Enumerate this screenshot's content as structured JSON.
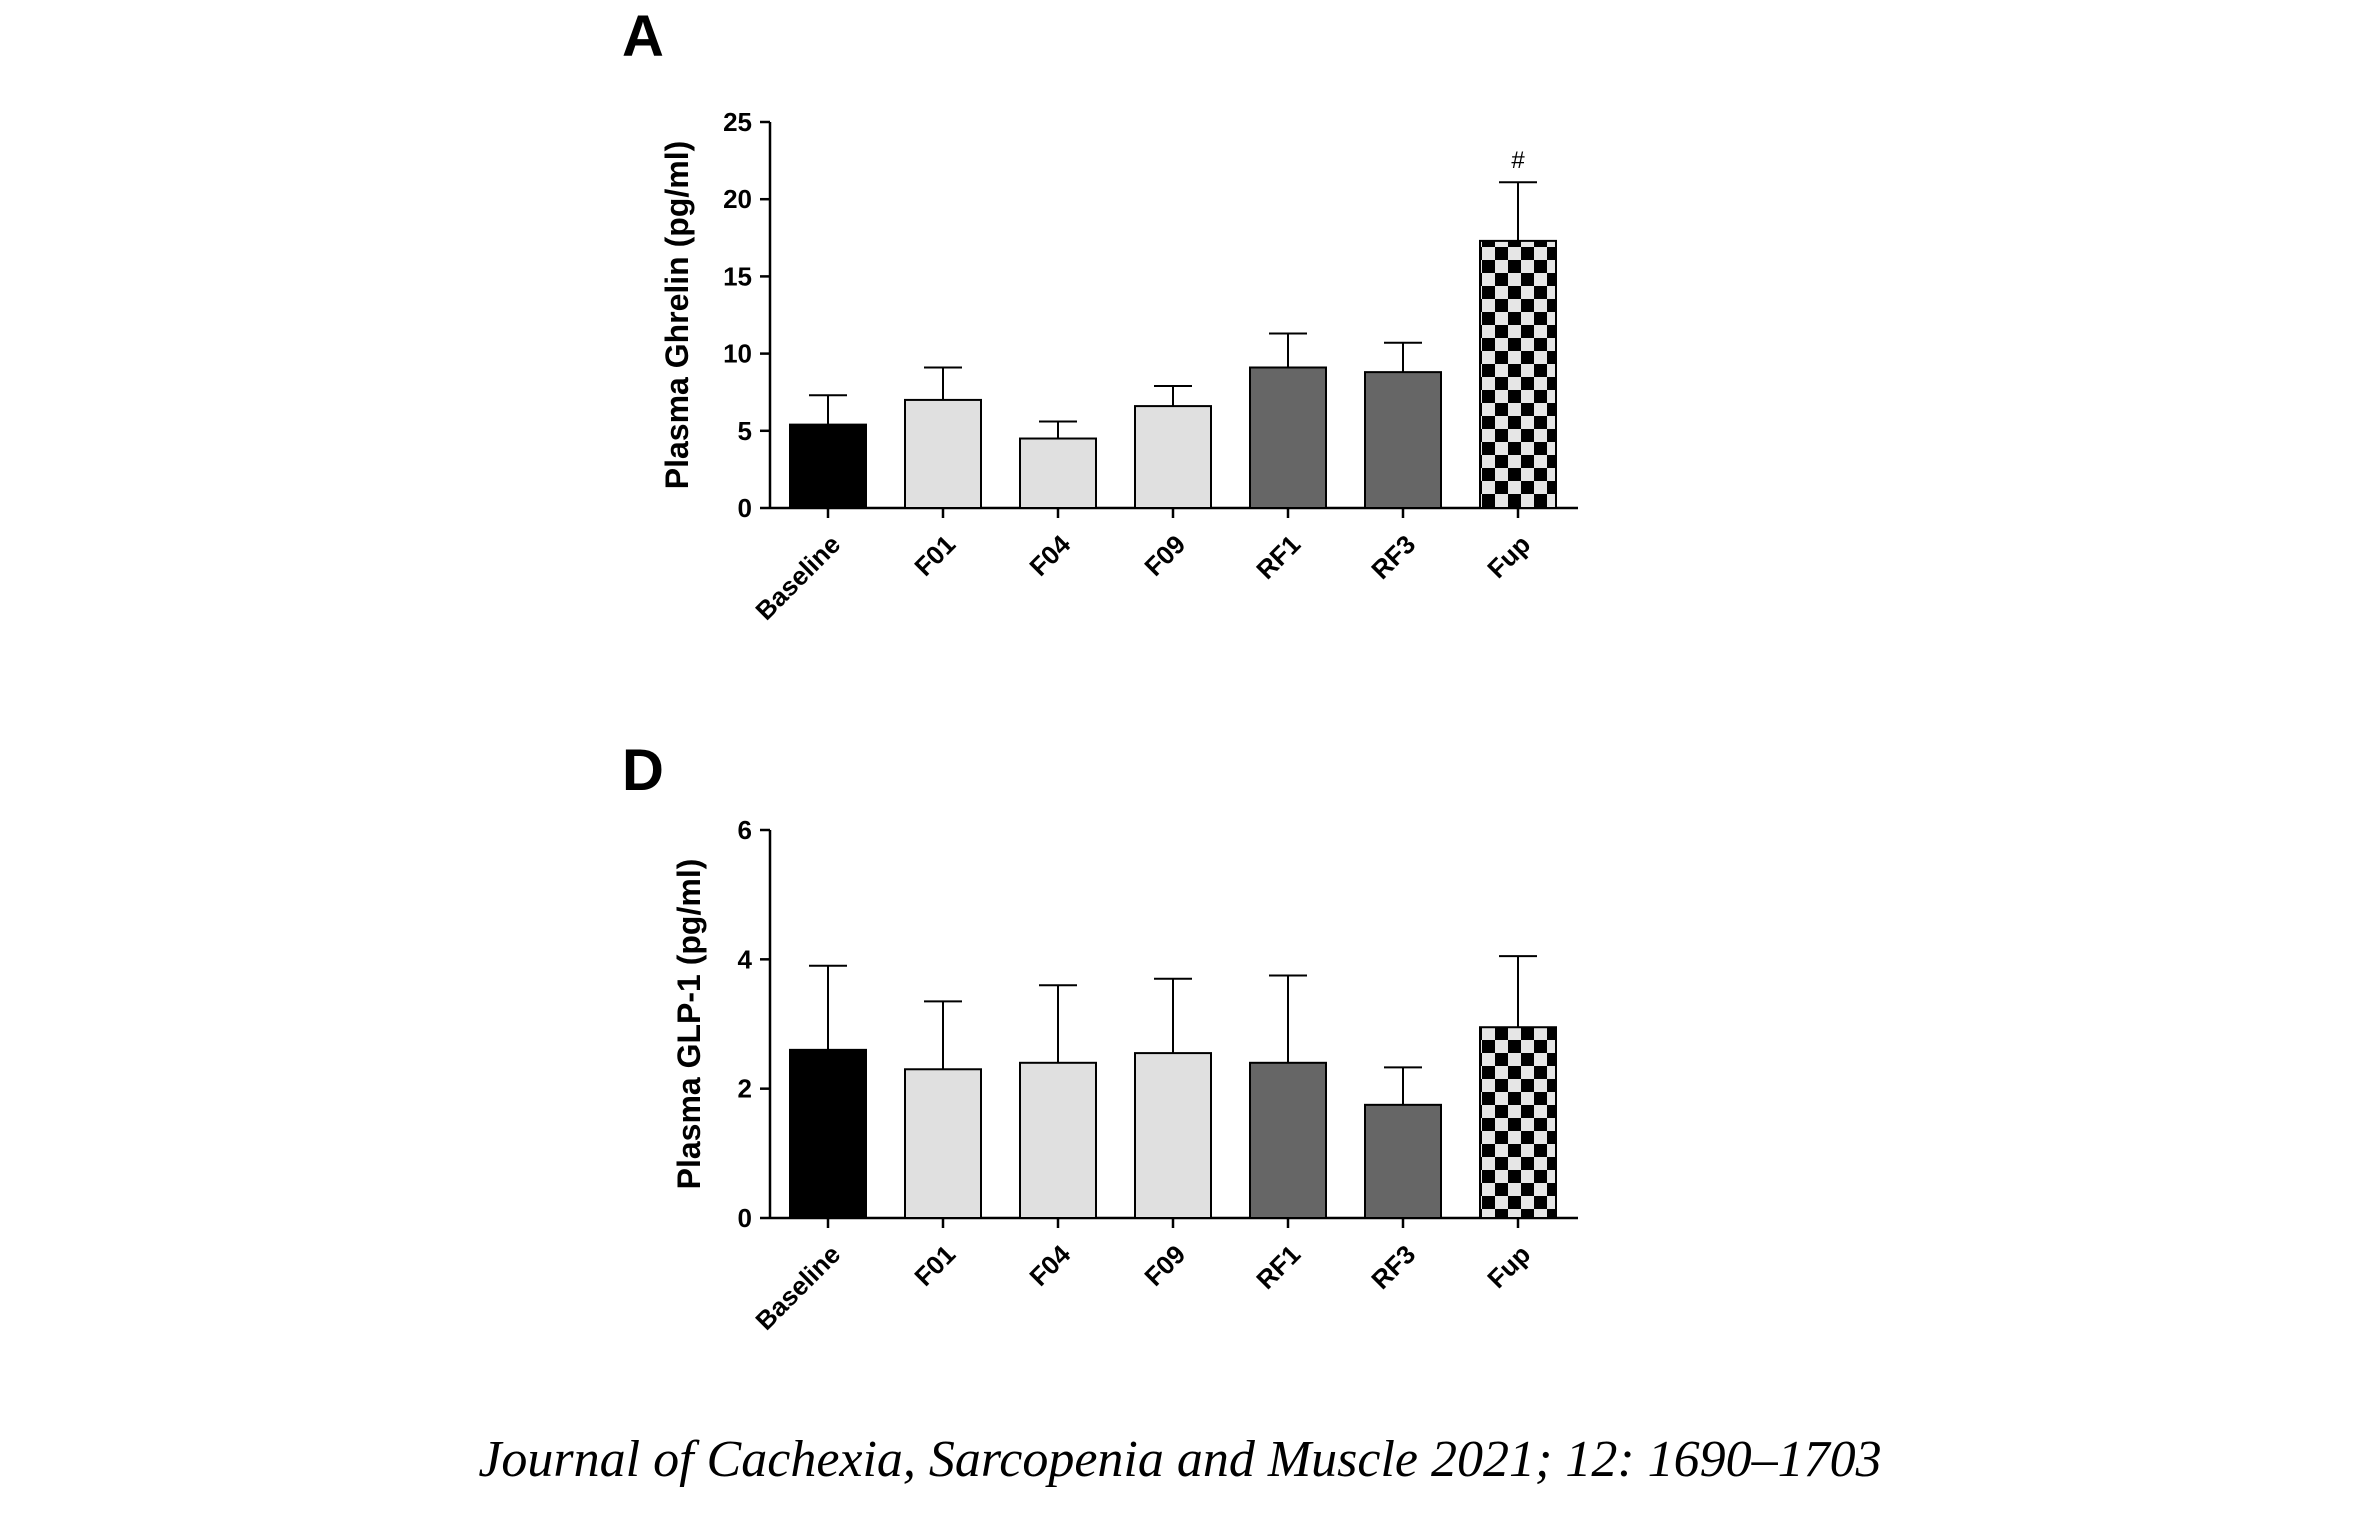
{
  "citation": "Journal of Cachexia, Sarcopenia and Muscle 2021; 12: 1690–1703",
  "colors": {
    "baseline": "#000000",
    "fasting": "#e0e0e0",
    "refeeding": "#666666",
    "checker_dark": "#000000",
    "checker_light": "#e6e6e6",
    "axis": "#000000"
  },
  "chart_data": [
    {
      "panel": "A",
      "type": "bar",
      "ylabel": "Plasma Ghrelin (pg/ml)",
      "xlabel": "",
      "categories": [
        "Baseline",
        "F01",
        "F04",
        "F09",
        "RF1",
        "RF3",
        "Fup"
      ],
      "values": [
        5.4,
        7.0,
        4.5,
        6.6,
        9.1,
        8.8,
        17.3
      ],
      "errors": [
        1.9,
        2.1,
        1.1,
        1.3,
        2.2,
        1.9,
        3.8
      ],
      "fills": [
        "baseline",
        "fasting",
        "fasting",
        "fasting",
        "refeeding",
        "refeeding",
        "checker"
      ],
      "annotations": [
        "",
        "",
        "",
        "",
        "",
        "",
        "#"
      ],
      "ylim": [
        0,
        25
      ],
      "yticks": [
        "0",
        "5",
        "10",
        "15",
        "20",
        "25"
      ]
    },
    {
      "panel": "D",
      "type": "bar",
      "ylabel": "Plasma GLP-1 (pg/ml)",
      "xlabel": "",
      "categories": [
        "Baseline",
        "F01",
        "F04",
        "F09",
        "RF1",
        "RF3",
        "Fup"
      ],
      "values": [
        2.6,
        2.3,
        2.4,
        2.55,
        2.4,
        1.75,
        2.95
      ],
      "errors": [
        1.3,
        1.05,
        1.2,
        1.15,
        1.35,
        0.58,
        1.1
      ],
      "fills": [
        "baseline",
        "fasting",
        "fasting",
        "fasting",
        "refeeding",
        "refeeding",
        "checker"
      ],
      "annotations": [
        "",
        "",
        "",
        "",
        "",
        "",
        ""
      ],
      "ylim": [
        0,
        6
      ],
      "yticks": [
        "0",
        "2",
        "4",
        "6"
      ]
    }
  ]
}
